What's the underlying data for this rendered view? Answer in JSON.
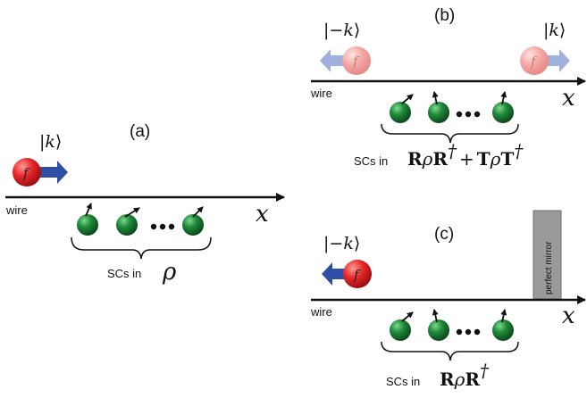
{
  "panels": {
    "a": {
      "label": "(a)",
      "ket_open": "|",
      "ket_symbol": "k",
      "ket_close": "⟩",
      "particle": "f",
      "wire": "wire",
      "axis": "x",
      "caption_prefix": "SCs in",
      "caption_math": "ρ"
    },
    "b": {
      "label": "(b)",
      "ket_left_open": "|−",
      "ket_left_symbol": "k",
      "ket_left_close": "⟩",
      "ket_right_open": "|",
      "ket_right_symbol": "k",
      "ket_right_close": "⟩",
      "particle": "f",
      "wire": "wire",
      "axis": "x",
      "caption_prefix": "SCs in",
      "caption_R": "R",
      "caption_rho1": "ρ",
      "caption_R2": "R",
      "caption_dag1": "†",
      "caption_plus": "+",
      "caption_T": "T",
      "caption_rho2": "ρ",
      "caption_T2": "T",
      "caption_dag2": "†"
    },
    "c": {
      "label": "(c)",
      "ket_open": "|−",
      "ket_symbol": "k",
      "ket_close": "⟩",
      "particle": "f",
      "wire": "wire",
      "axis": "x",
      "mirror": "perfect mirror",
      "caption_prefix": "SCs in",
      "caption_R": "R",
      "caption_rho": "ρ",
      "caption_R2": "R",
      "caption_dag": "†"
    }
  },
  "colors": {
    "particle_red": "#e8262a",
    "particle_faded": "#f3a6a3",
    "arrow_blue": "#2e4fa3",
    "arrow_faded": "#9fb0dc",
    "spin_green": "#1f8a3a",
    "mirror_gray": "#9a9a9a"
  }
}
